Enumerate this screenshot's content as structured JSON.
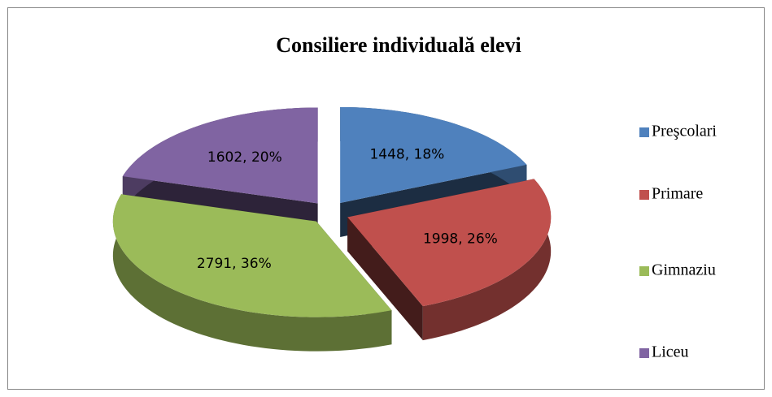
{
  "chart_data": {
    "type": "pie3d",
    "title": "Consiliere individuală elevi",
    "categories": [
      "Preşcolari",
      "Primare",
      "Gimnaziu",
      "Liceu"
    ],
    "values": [
      1448,
      1998,
      2791,
      1602
    ],
    "value_labels": [
      "1448, 18%",
      "1998, 26%",
      "2791, 36%",
      "1602, 20%"
    ],
    "colors": [
      "#4f81bd",
      "#c0504d",
      "#9bbb59",
      "#8064a2"
    ],
    "legend": "right"
  }
}
